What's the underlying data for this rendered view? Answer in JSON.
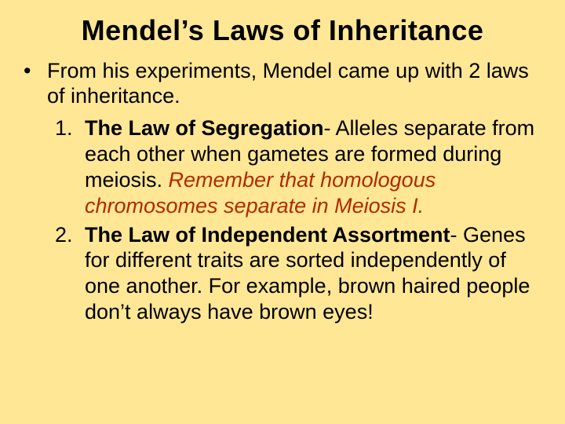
{
  "background_color": "#ffe796",
  "text_color": "#000000",
  "emphasis_color": "#b22a00",
  "font_family": "Arial",
  "title": {
    "text": "Mendel’s Laws of Inheritance",
    "font_size": 36,
    "font_weight": "bold",
    "align": "center"
  },
  "intro": {
    "bullet_glyph": "•",
    "text": "From his experiments, Mendel came up with 2 laws of inheritance.",
    "font_size": 27
  },
  "laws": [
    {
      "marker": "1.",
      "bold_lead": "The Law of Segregation",
      "dash": "- ",
      "after_bold": "Alleles separate from each other when gametes are formed during meiosis.  ",
      "italic_highlight": "Remember that homologous chromosomes separate in Meiosis I."
    },
    {
      "marker": "2.",
      "bold_lead": "The Law of Independent Assortment",
      "dash": "- ",
      "after_bold": "Genes for different traits are sorted independently of one another.  For example, brown haired people don’t always have brown eyes!",
      "italic_highlight": ""
    }
  ]
}
